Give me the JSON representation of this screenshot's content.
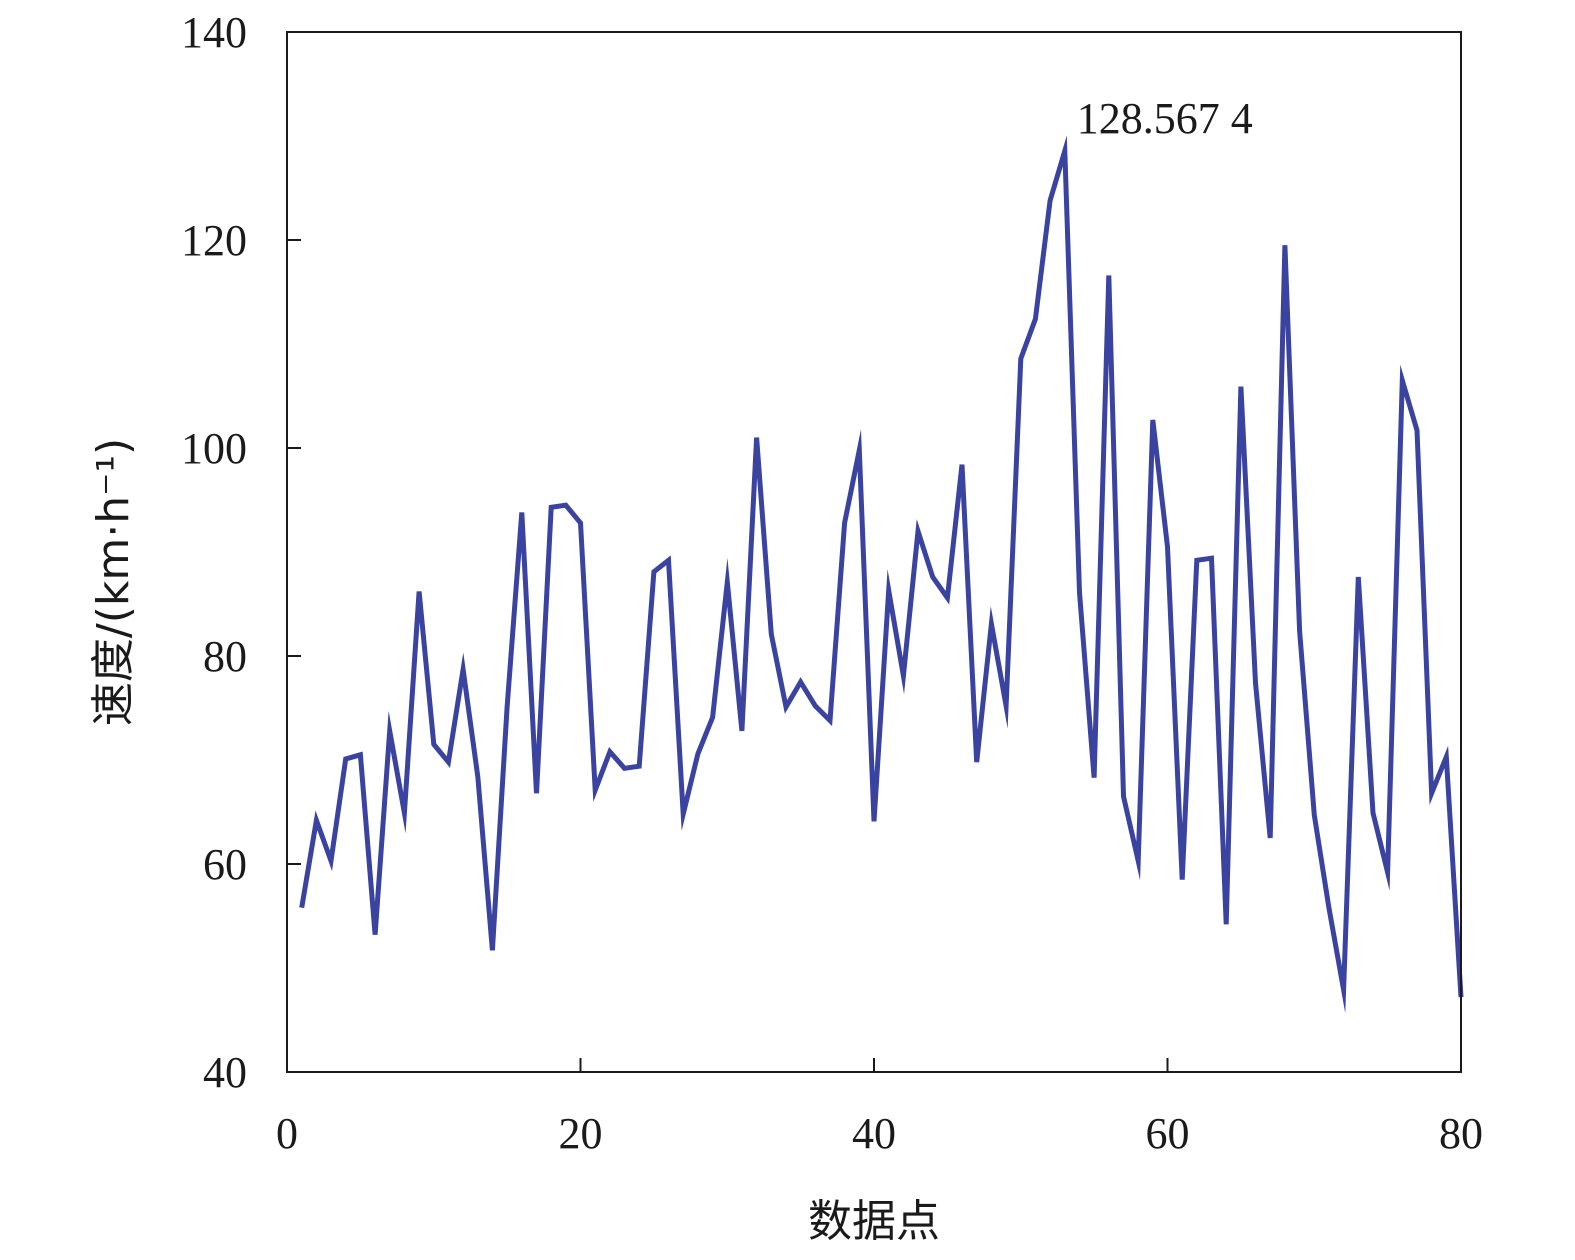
{
  "chart_data": {
    "type": "line",
    "title": "",
    "xlabel": "数据点",
    "ylabel": "速度/(km·h⁻¹)",
    "xlim": [
      0,
      80
    ],
    "ylim": [
      40,
      140
    ],
    "x_ticks": [
      0,
      20,
      40,
      60,
      80
    ],
    "y_ticks": [
      40,
      60,
      80,
      100,
      120,
      140
    ],
    "grid": false,
    "line_color": "#3a43a0",
    "series": [
      {
        "x": [
          1,
          2,
          3,
          4,
          5,
          6,
          7,
          8,
          9,
          10,
          11,
          12,
          13,
          14,
          15,
          16,
          17,
          18,
          19,
          20,
          21,
          22,
          23,
          24,
          25,
          26,
          27,
          28,
          29,
          30,
          31,
          32,
          33,
          34,
          35,
          36,
          37,
          38,
          39,
          40,
          41,
          42,
          43,
          44,
          45,
          46,
          47,
          48,
          49,
          50,
          51,
          52,
          53,
          54,
          55,
          56,
          57,
          58,
          59,
          60,
          61,
          62,
          63,
          64,
          65,
          66,
          67,
          68,
          69,
          70,
          71,
          72,
          73,
          74,
          75,
          76,
          77,
          78,
          79,
          80
        ],
        "values": [
          55.8,
          64.2,
          60.3,
          70.1,
          70.5,
          53.2,
          72.8,
          64.9,
          86.2,
          71.5,
          69.8,
          78.7,
          68.4,
          51.7,
          75.1,
          93.8,
          66.8,
          94.3,
          94.5,
          92.8,
          67.1,
          70.8,
          69.2,
          69.4,
          88.1,
          89.2,
          64.8,
          70.6,
          74.1,
          87.1,
          72.8,
          101.0,
          82.1,
          75.1,
          77.5,
          75.2,
          73.8,
          92.8,
          99.8,
          64.1,
          86.3,
          78.1,
          92.0,
          87.6,
          85.6,
          98.4,
          69.8,
          83.1,
          75.2,
          108.6,
          112.4,
          123.8,
          128.5674,
          86.1,
          68.3,
          116.6,
          66.5,
          60.3,
          102.7,
          90.5,
          58.5,
          89.2,
          89.4,
          54.2,
          105.9,
          77.4,
          62.5,
          119.5,
          82.4,
          64.7,
          55.8,
          47.9,
          87.6,
          64.9,
          59.2,
          106.5,
          101.7,
          66.8,
          70.3,
          47.2
        ]
      }
    ],
    "annotations": [
      {
        "text": "128.567 4",
        "x": 53,
        "y": 128.5674
      }
    ]
  }
}
